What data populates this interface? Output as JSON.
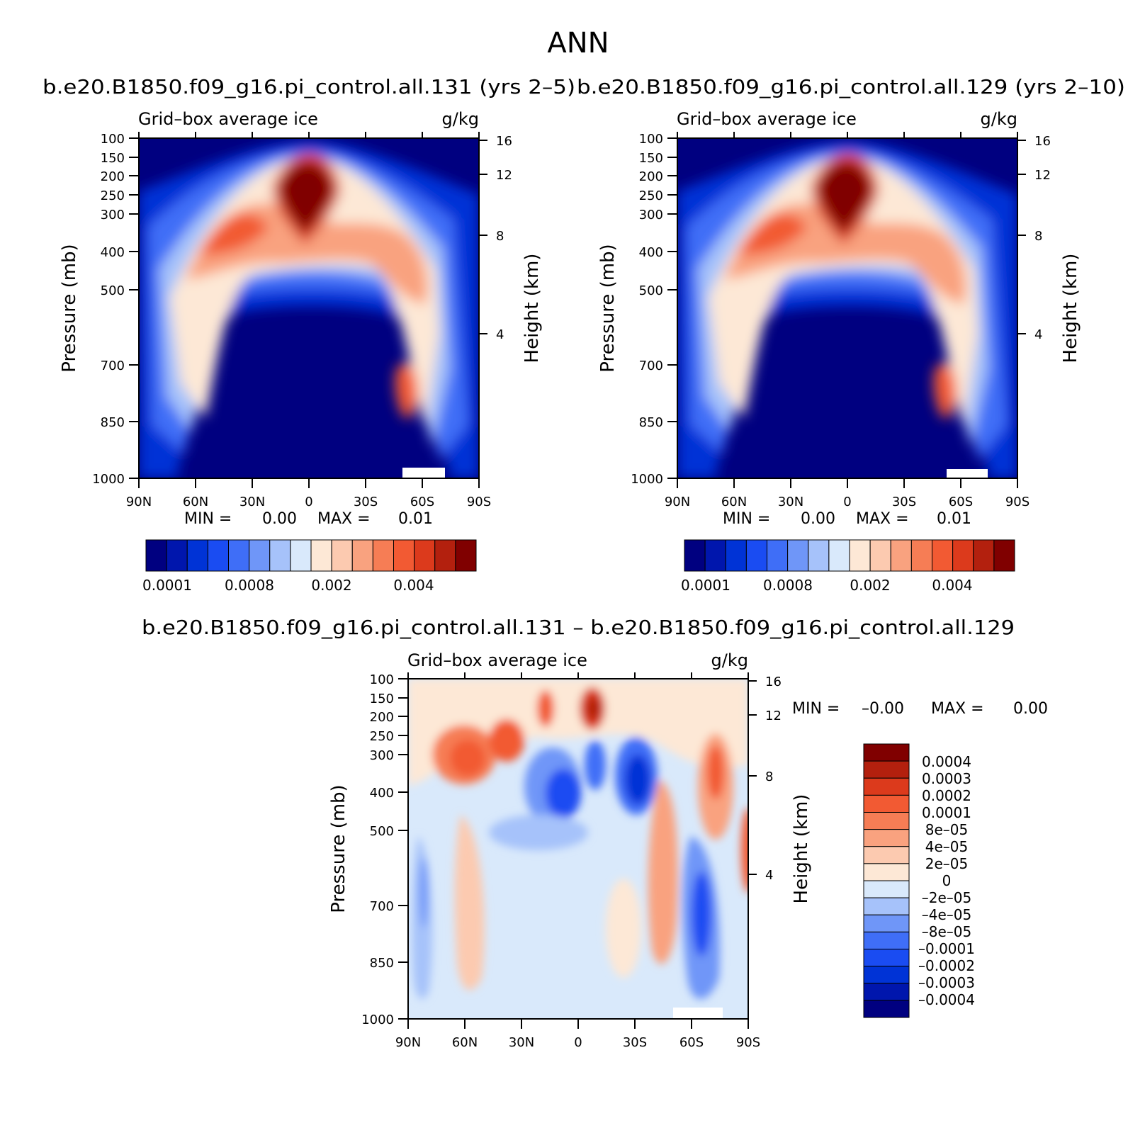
{
  "figure_title": "ANN",
  "colors": {
    "abs_scale": [
      "#000080",
      "#0016ad",
      "#0033d6",
      "#1a4cf2",
      "#3f6ef7",
      "#6f96f8",
      "#a6c2fa",
      "#d9e9fb",
      "#fde8d6",
      "#fccab0",
      "#f9a27f",
      "#f67d55",
      "#f25a33",
      "#dc3a1c",
      "#b3200e",
      "#800000"
    ],
    "diff_scale": [
      "#800000",
      "#b3200e",
      "#dc3a1c",
      "#f25a33",
      "#f67d55",
      "#f9a27f",
      "#fccab0",
      "#fde8d6",
      "#d9e9fb",
      "#a6c2fa",
      "#6f96f8",
      "#3f6ef7",
      "#1a4cf2",
      "#0033d6",
      "#0016ad",
      "#000080"
    ]
  },
  "panels": [
    {
      "case_title": "b.e20.B1850.f09_g16.pi_control.all.131 (yrs 2–5)",
      "variable": "Grid–box average ice",
      "units": "g/kg",
      "min_text": "MIN =",
      "min_value": "0.00",
      "max_text": "MAX =",
      "max_value": "0.01",
      "colorbar_labels": [
        "0.0001",
        "0.0008",
        "0.002",
        "0.004"
      ]
    },
    {
      "case_title": "b.e20.B1850.f09_g16.pi_control.all.129 (yrs 2–10)",
      "variable": "Grid–box average ice",
      "units": "g/kg",
      "min_text": "MIN =",
      "min_value": "0.00",
      "max_text": "MAX =",
      "max_value": "0.01",
      "colorbar_labels": [
        "0.0001",
        "0.0008",
        "0.002",
        "0.004"
      ]
    },
    {
      "case_title": "b.e20.B1850.f09_g16.pi_control.all.131 – b.e20.B1850.f09_g16.pi_control.all.129",
      "variable": "Grid–box average ice",
      "units": "g/kg",
      "min_text": "MIN =",
      "min_value": "–0.00",
      "max_text": "MAX =",
      "max_value": "0.00",
      "colorbar_labels": [
        "0.0004",
        "0.0003",
        "0.0002",
        "0.0001",
        "8e–05",
        "4e–05",
        "2e–05",
        "0",
        "–2e–05",
        "–4e–05",
        "–8e–05",
        "–0.0001",
        "–0.0002",
        "–0.0003",
        "–0.0004"
      ]
    }
  ],
  "axes": {
    "ylabel_left": "Pressure (mb)",
    "ylabel_right": "Height (km)",
    "pressure_ticks": [
      "100",
      "150",
      "200",
      "250",
      "300",
      "400",
      "500",
      "700",
      "850",
      "1000"
    ],
    "height_ticks": [
      "16",
      "12",
      "8",
      "4"
    ],
    "lat_ticks": [
      "90N",
      "60N",
      "30N",
      "0",
      "30S",
      "60S",
      "90S"
    ]
  },
  "chart_data": [
    {
      "type": "heatmap",
      "title": "b.e20.B1850.f09_g16.pi_control.all.131 (yrs 2–5)",
      "xlabel": "",
      "ylabel": "Pressure (mb)",
      "x": [
        90,
        -90
      ],
      "y_pressure": [
        100,
        1000
      ],
      "color_levels": [
        0.0001,
        0.0002,
        0.0004,
        0.0006,
        0.0008,
        0.001,
        0.0015,
        0.002,
        0.0025,
        0.003,
        0.0035,
        0.004,
        0.0045,
        0.005,
        0.0055
      ],
      "features": [
        {
          "label": "tropical upper max",
          "lat": 6,
          "p": 240,
          "value": 0.006
        },
        {
          "label": "NH mid-lat max",
          "lat": 40,
          "p": 330,
          "value": 0.0045
        },
        {
          "label": "SH mid-lat max",
          "lat": -30,
          "p": 300,
          "value": 0.0035
        },
        {
          "label": "SH low-level max",
          "lat": -55,
          "p": 760,
          "value": 0.003
        }
      ],
      "min": 0.0,
      "max": 0.01
    },
    {
      "type": "heatmap",
      "title": "b.e20.B1850.f09_g16.pi_control.all.129 (yrs 2–10)",
      "xlabel": "",
      "ylabel": "Pressure (mb)",
      "x": [
        90,
        -90
      ],
      "y_pressure": [
        100,
        1000
      ],
      "color_levels": [
        0.0001,
        0.0002,
        0.0004,
        0.0006,
        0.0008,
        0.001,
        0.0015,
        0.002,
        0.0025,
        0.003,
        0.0035,
        0.004,
        0.0045,
        0.005,
        0.0055
      ],
      "features": [
        {
          "label": "tropical upper max",
          "lat": 6,
          "p": 240,
          "value": 0.006
        },
        {
          "label": "NH mid-lat max",
          "lat": 40,
          "p": 330,
          "value": 0.0045
        },
        {
          "label": "SH mid-lat max",
          "lat": -30,
          "p": 300,
          "value": 0.0035
        },
        {
          "label": "SH low-level max",
          "lat": -55,
          "p": 760,
          "value": 0.003
        }
      ],
      "min": 0.0,
      "max": 0.01
    },
    {
      "type": "heatmap",
      "title": "b.e20.B1850.f09_g16.pi_control.all.131 – b.e20.B1850.f09_g16.pi_control.all.129",
      "xlabel": "",
      "ylabel": "Pressure (mb)",
      "x": [
        90,
        -90
      ],
      "y_pressure": [
        100,
        1000
      ],
      "color_levels": [
        -0.0004,
        -0.0003,
        -0.0002,
        -0.0001,
        -8e-05,
        -4e-05,
        -2e-05,
        0,
        2e-05,
        4e-05,
        8e-05,
        0.0001,
        0.0002,
        0.0003,
        0.0004
      ],
      "features": [
        {
          "label": "NH mid-lat upper positive",
          "lat": 48,
          "p": 300,
          "value": 0.00025
        },
        {
          "label": "tropical upper positive",
          "lat": -8,
          "p": 200,
          "value": 0.0004
        },
        {
          "label": "tropical upper negative",
          "lat": 8,
          "p": 400,
          "value": -0.0002
        },
        {
          "label": "SH subtropical negative",
          "lat": -30,
          "p": 350,
          "value": -0.0003
        },
        {
          "label": "SH lower positive",
          "lat": -45,
          "p": 600,
          "value": 0.0001
        },
        {
          "label": "SH low-level negative",
          "lat": -60,
          "p": 700,
          "value": -0.0002
        },
        {
          "label": "SH polar upper positive",
          "lat": -72,
          "p": 320,
          "value": 0.0002
        }
      ],
      "min": -0.0,
      "max": 0.0
    }
  ]
}
